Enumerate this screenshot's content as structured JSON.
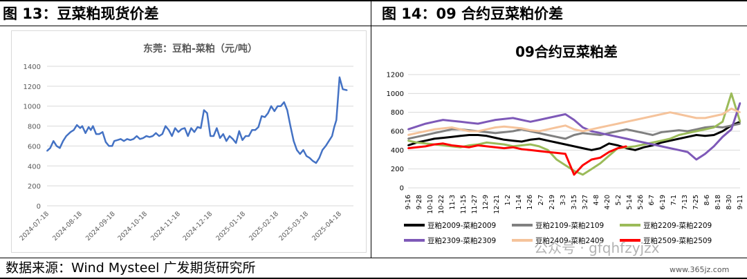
{
  "header": {
    "left_title": "图 13：豆菜粕现货价差",
    "right_title": "图 14：09 合约豆菜粕价差"
  },
  "footer": {
    "source": "数据来源：Wind Mysteel 广发期货研究所"
  },
  "watermark": {
    "text": "公众号 · gfqhfzyjzx",
    "site": "www.365jz.com"
  },
  "chart_data": [
    {
      "type": "line",
      "title": "东莞：豆粕-菜粕（元/吨）",
      "ylim": [
        0,
        1400
      ],
      "yticks": [
        0,
        200,
        400,
        600,
        800,
        1000,
        1200,
        1400
      ],
      "x_ticks": [
        "2024-07-18",
        "2024-08-18",
        "2024-09-18",
        "2024-10-18",
        "2024-11-18",
        "2024-12-18",
        "2025-01-18",
        "2025-02-18",
        "2025-03-18",
        "2025-04-18"
      ],
      "xlim": [
        "2024-07-18",
        "2025-05-01"
      ],
      "grid": true,
      "legend": "none",
      "colors": {
        "line": "#4472c4",
        "grid": "#d9d9d9"
      },
      "series": [
        {
          "x": [
            "2024-07-18",
            "2024-07-21",
            "2024-07-24",
            "2024-07-27",
            "2024-07-30",
            "2024-08-02",
            "2024-08-05",
            "2024-08-09",
            "2024-08-12",
            "2024-08-15",
            "2024-08-18",
            "2024-08-20",
            "2024-08-23",
            "2024-08-26",
            "2024-08-28",
            "2024-08-30",
            "2024-09-02",
            "2024-09-05",
            "2024-09-08",
            "2024-09-11",
            "2024-09-14",
            "2024-09-17",
            "2024-09-19",
            "2024-09-22",
            "2024-09-25",
            "2024-09-28",
            "2024-10-01",
            "2024-10-04",
            "2024-10-07",
            "2024-10-10",
            "2024-10-13",
            "2024-10-16",
            "2024-10-19",
            "2024-10-22",
            "2024-10-25",
            "2024-10-28",
            "2024-10-31",
            "2024-11-03",
            "2024-11-06",
            "2024-11-09",
            "2024-11-12",
            "2024-11-15",
            "2024-11-18",
            "2024-11-21",
            "2024-11-24",
            "2024-11-27",
            "2024-11-30",
            "2024-12-03",
            "2024-12-06",
            "2024-12-09",
            "2024-12-12",
            "2024-12-15",
            "2024-12-18",
            "2024-12-21",
            "2024-12-24",
            "2024-12-27",
            "2024-12-30",
            "2025-01-02",
            "2025-01-05",
            "2025-01-08",
            "2025-01-11",
            "2025-01-14",
            "2025-01-17",
            "2025-01-20",
            "2025-01-23",
            "2025-01-26",
            "2025-01-29",
            "2025-02-01",
            "2025-02-04",
            "2025-02-07",
            "2025-02-10",
            "2025-02-13",
            "2025-02-16",
            "2025-02-19",
            "2025-02-22",
            "2025-02-25",
            "2025-02-28",
            "2025-03-03",
            "2025-03-06",
            "2025-03-09",
            "2025-03-12",
            "2025-03-15",
            "2025-03-18",
            "2025-03-21",
            "2025-03-24",
            "2025-03-27",
            "2025-03-30",
            "2025-04-02",
            "2025-04-05",
            "2025-04-08",
            "2025-04-11",
            "2025-04-13",
            "2025-04-15",
            "2025-04-18",
            "2025-04-21",
            "2025-04-25"
          ],
          "values": [
            550,
            580,
            650,
            600,
            580,
            650,
            700,
            740,
            760,
            810,
            780,
            800,
            730,
            790,
            760,
            800,
            720,
            720,
            740,
            640,
            600,
            600,
            650,
            660,
            670,
            650,
            670,
            660,
            670,
            700,
            670,
            680,
            700,
            690,
            700,
            730,
            700,
            720,
            800,
            760,
            700,
            780,
            740,
            770,
            780,
            700,
            780,
            740,
            790,
            780,
            960,
            930,
            700,
            700,
            780,
            680,
            720,
            650,
            700,
            670,
            630,
            750,
            660,
            700,
            700,
            760,
            760,
            790,
            900,
            890,
            930,
            1000,
            950,
            1000,
            1000,
            1040,
            960,
            800,
            650,
            560,
            520,
            560,
            500,
            480,
            450,
            430,
            480,
            560,
            600,
            650,
            700,
            790,
            860,
            1290,
            1170,
            1160
          ]
        }
      ]
    },
    {
      "type": "line",
      "title": "09合约豆菜粕差",
      "ylim": [
        0,
        1200
      ],
      "yticks": [
        0,
        200,
        400,
        600,
        800,
        1000,
        1200
      ],
      "x_ticks": [
        "9-16",
        "9-28",
        "10-10",
        "10-22",
        "11-3",
        "11-15",
        "11-27",
        "12-9",
        "12-21",
        "1-2",
        "1-14",
        "1-26",
        "2-7",
        "2-19",
        "3-3",
        "3-15",
        "3-27",
        "4-8",
        "4-20",
        "5-2",
        "5-14",
        "5-26",
        "6-7",
        "6-19",
        "7-1",
        "7-13",
        "7-25",
        "8-6",
        "8-18",
        "8-30",
        "9-11"
      ],
      "grid": true,
      "legend": "bottom",
      "series": [
        {
          "name": "豆粕2009-菜粕2009",
          "color": "#000000",
          "values": [
            450,
            480,
            500,
            520,
            530,
            540,
            550,
            560,
            560,
            550,
            530,
            510,
            500,
            490,
            510,
            520,
            500,
            480,
            460,
            440,
            420,
            400,
            420,
            470,
            450,
            420,
            400,
            430,
            450,
            480,
            500,
            520,
            540,
            560,
            550,
            560,
            600,
            660,
            700
          ]
        },
        {
          "name": "豆粕2109-菜粕2109",
          "color": "#808080",
          "values": [
            520,
            540,
            560,
            580,
            600,
            620,
            620,
            610,
            600,
            590,
            580,
            590,
            600,
            620,
            600,
            580,
            560,
            540,
            520,
            560,
            580,
            570,
            560,
            580,
            600,
            620,
            600,
            580,
            560,
            590,
            600,
            610,
            600,
            620,
            640,
            650,
            640,
            660,
            680
          ]
        },
        {
          "name": "豆粕2209-菜粕2209",
          "color": "#9bbb59",
          "values": [
            500,
            480,
            470,
            460,
            450,
            440,
            430,
            450,
            460,
            480,
            470,
            460,
            440,
            450,
            460,
            440,
            400,
            300,
            240,
            180,
            140,
            200,
            260,
            340,
            420,
            430,
            440,
            460,
            480,
            500,
            520,
            560,
            580,
            600,
            620,
            640,
            700,
            1000,
            700
          ]
        },
        {
          "name": "豆粕2309-菜粕2309",
          "color": "#7e59b8",
          "values": [
            620,
            650,
            680,
            700,
            720,
            710,
            700,
            690,
            680,
            700,
            720,
            730,
            740,
            720,
            700,
            720,
            740,
            760,
            780,
            720,
            640,
            600,
            580,
            560,
            540,
            520,
            500,
            480,
            460,
            440,
            420,
            400,
            380,
            300,
            360,
            440,
            540,
            620,
            900
          ]
        },
        {
          "name": "豆粕2409-菜粕2409",
          "color": "#f5c39b",
          "values": [
            560,
            580,
            600,
            620,
            630,
            640,
            620,
            600,
            600,
            620,
            640,
            650,
            640,
            630,
            610,
            600,
            620,
            640,
            660,
            620,
            600,
            620,
            640,
            660,
            680,
            700,
            720,
            740,
            760,
            780,
            800,
            780,
            760,
            740,
            740,
            760,
            780,
            840,
            800
          ]
        },
        {
          "name": "豆粕2509-菜粕2509",
          "color": "#ff0000",
          "values": [
            420,
            430,
            440,
            460,
            470,
            450,
            440,
            430,
            450,
            440,
            430,
            420,
            430,
            410,
            400,
            390,
            380,
            370,
            360,
            140,
            240,
            300,
            320,
            380,
            420,
            440
          ]
        }
      ]
    }
  ]
}
